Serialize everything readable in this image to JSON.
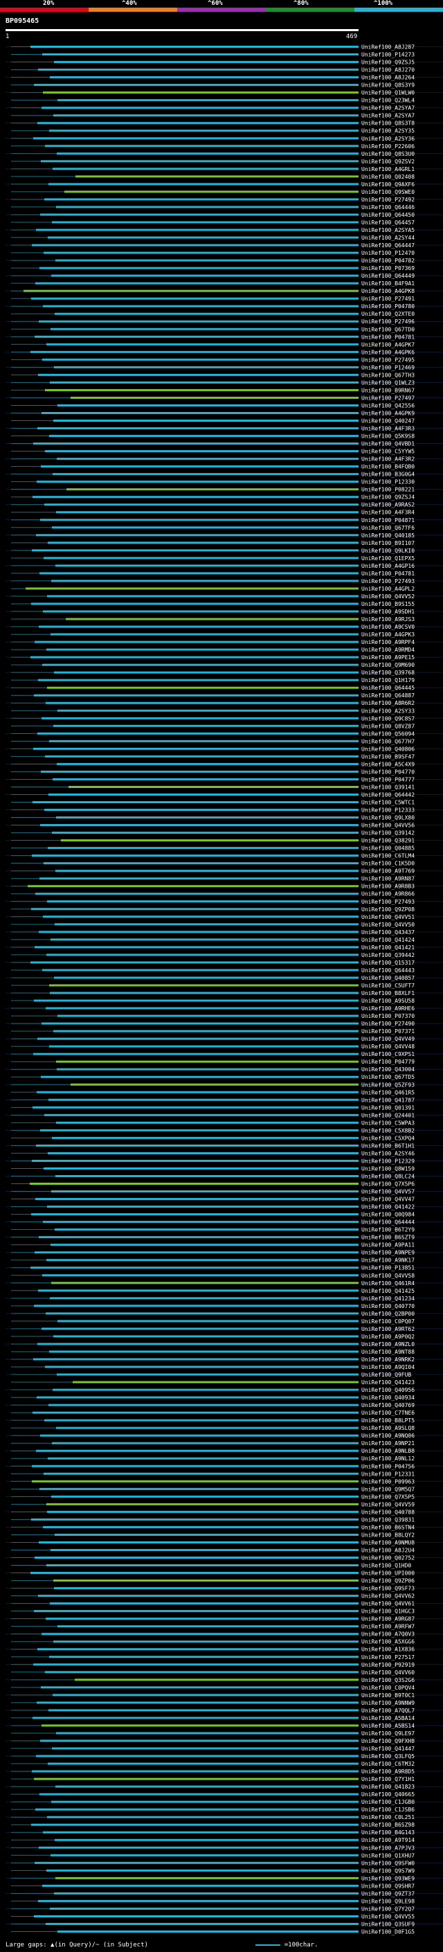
{
  "title": "BP095465",
  "scale": {
    "ticks": [
      "20%",
      "^40%",
      "^60%",
      "^80%",
      "^100%"
    ],
    "colors": [
      "#e8001c",
      "#ef7f18",
      "#9b2fb0",
      "#1b8f2a",
      "#1fb6d8"
    ]
  },
  "axis": {
    "start": "1",
    "end": "469"
  },
  "footer": {
    "gaps_text": "Large gaps: ▲(in Query)/~ (in Subject)",
    "scale_text": "=100char."
  },
  "chart_data": {
    "type": "alignment",
    "query_length": 469,
    "bar_color": "#1fb6d8",
    "partial_color": "#7bc62a",
    "hits": [
      "UniRef100_A8J287",
      "UniRef100_P14273",
      "UniRef100_Q9ZSJ5",
      "UniRef100_A8J270",
      "UniRef100_A8J264",
      "UniRef100_Q8S3Y9",
      "UniRef100_Q1WLW0",
      "UniRef100_Q23WL4",
      "UniRef100_A2SYA7",
      "UniRef100_A2SYA7",
      "UniRef100_Q8S3T8",
      "UniRef100_A2SY35",
      "UniRef100_A2SY36",
      "UniRef100_P22606",
      "UniRef100_Q8S3U0",
      "UniRef100_Q9ZSV2",
      "UniRef100_A4GRL1",
      "UniRef100_Q02408",
      "UniRef100_Q9AXF6",
      "UniRef100_Q9SWE0",
      "UniRef100_P27492",
      "UniRef100_Q64446",
      "UniRef100_Q64450",
      "UniRef100_Q64457",
      "UniRef100_A2SYA5",
      "UniRef100_A2SY44",
      "UniRef100_Q64447",
      "UniRef100_P12470",
      "UniRef100_P04782",
      "UniRef100_P07369",
      "UniRef100_Q64449",
      "UniRef100_B4F9A1",
      "UniRef100_A4GPK8",
      "UniRef100_P27491",
      "UniRef100_P04780",
      "UniRef100_Q2XTE0",
      "UniRef100_P27496",
      "UniRef100_Q67TD0",
      "UniRef100_P04781",
      "UniRef100_A4GPK7",
      "UniRef100_A4GPK6",
      "UniRef100_P27495",
      "UniRef100_P12469",
      "UniRef100_Q67TH3",
      "UniRef100_Q1WLZ3",
      "UniRef100_B9RN67",
      "UniRef100_P27497",
      "UniRef100_Q42556",
      "UniRef100_A4GPK9",
      "UniRef100_Q40247",
      "UniRef100_A4F3R3",
      "UniRef100_Q5K9S8",
      "UniRef100_Q4VBD1",
      "UniRef100_C5YYW5",
      "UniRef100_A4F3R2",
      "UniRef100_B4FQB0",
      "UniRef100_B3G0G4",
      "UniRef100_P12330",
      "UniRef100_P08221",
      "UniRef100_Q9ZSJ4",
      "UniRef100_A9RAS2",
      "UniRef100_A4F3R4",
      "UniRef100_P04871",
      "UniRef100_Q67TF6",
      "UniRef100_Q40185",
      "UniRef100_B9I107",
      "UniRef100_Q9LKI0",
      "UniRef100_Q1EPX5",
      "UniRef100_A4GP16",
      "UniRef100_P04781",
      "UniRef100_P27493",
      "UniRef100_A4GPL2",
      "UniRef100_Q4VV52",
      "UniRef100_B9S155",
      "UniRef100_A9SDH1",
      "UniRef100_A9RJS3",
      "UniRef100_A9CSV0",
      "UniRef100_A4GPK3",
      "UniRef100_A9RPF4",
      "UniRef100_A9RMD4",
      "UniRef100_A9PE15",
      "UniRef100_Q9M690",
      "UniRef100_Q39768",
      "UniRef100_Q1H179",
      "UniRef100_Q64445",
      "UniRef100_Q64887",
      "UniRef100_A8R6R2",
      "UniRef100_A2SY33",
      "UniRef100_Q9C8S7",
      "UniRef100_Q8VZ87",
      "UniRef100_Q56094",
      "UniRef100_Q677H7",
      "UniRef100_Q40806",
      "UniRef100_B9SF47",
      "UniRef100_A5C4X9",
      "UniRef100_P04770",
      "UniRef100_P04777",
      "UniRef100_Q39141",
      "UniRef100_Q64442",
      "UniRef100_C5WTC1",
      "UniRef100_P12333",
      "UniRef100_Q9LX80",
      "UniRef100_Q4VV56",
      "UniRef100_Q39142",
      "UniRef100_Q38291",
      "UniRef100_Q04885",
      "UniRef100_C6TLM4",
      "UniRef100_C1K5D0",
      "UniRef100_A9T769",
      "UniRef100_A9RN87",
      "UniRef100_A9R8B3",
      "UniRef100_A9R866",
      "UniRef100_P27493",
      "UniRef100_Q9ZP08",
      "UniRef100_Q4VV51",
      "UniRef100_Q4VV50",
      "UniRef100_Q43437",
      "UniRef100_Q41424",
      "UniRef100_Q41421",
      "UniRef100_Q39442",
      "UniRef100_Q15317",
      "UniRef100_Q64443",
      "UniRef100_Q40857",
      "UniRef100_C5UFT7",
      "UniRef100_B8XLF1",
      "UniRef100_A9SU58",
      "UniRef100_A9RHE6",
      "UniRef100_P07370",
      "UniRef100_P27490",
      "UniRef100_P07371",
      "UniRef100_Q4VV49",
      "UniRef100_Q4VV48",
      "UniRef100_C9XPS1",
      "UniRef100_P04779",
      "UniRef100_Q43004",
      "UniRef100_Q67TD5",
      "UniRef100_Q5ZF93",
      "UniRef100_Q461R5",
      "UniRef100_Q41787",
      "UniRef100_Q01391",
      "UniRef100_Q24401",
      "UniRef100_C5WPA3",
      "UniRef100_C5X8B2",
      "UniRef100_C5XPQ4",
      "UniRef100_B6T1H1",
      "UniRef100_A2SY46",
      "UniRef100_P12329",
      "UniRef100_Q8W159",
      "UniRef100_Q8LC24",
      "UniRef100_Q7X5P6",
      "UniRef100_Q4VV57",
      "UniRef100_Q4VV47",
      "UniRef100_Q41422",
      "UniRef100_Q0Q984",
      "UniRef100_Q64444",
      "UniRef100_B6T2Y9",
      "UniRef100_B6SZT9",
      "UniRef100_A9PA11",
      "UniRef100_A9NPE9",
      "UniRef100_A9NK17",
      "UniRef100_P13851",
      "UniRef100_Q4VV58",
      "UniRef100_Q461R4",
      "UniRef100_Q41425",
      "UniRef100_Q41234",
      "UniRef100_Q40770",
      "UniRef100_Q2BP00",
      "UniRef100_C0PQ07",
      "UniRef100_A9RT62",
      "UniRef100_A9P0Q2",
      "UniRef100_A9NZL0",
      "UniRef100_A9NT88",
      "UniRef100_A9NRK2",
      "UniRef100_A9QI04",
      "UniRef100_Q9FUB",
      "UniRef100_Q41423",
      "UniRef100_Q40956",
      "UniRef100_Q40934",
      "UniRef100_Q40769",
      "UniRef100_C7TNE6",
      "UniRef100_B8LPT5",
      "UniRef100_A9SLQ8",
      "UniRef100_A9NQ06",
      "UniRef100_A9NP21",
      "UniRef100_A9NLB8",
      "UniRef100_A9NL12",
      "UniRef100_P04756",
      "UniRef100_P12331",
      "UniRef100_P09963",
      "UniRef100_Q9M5Q7",
      "UniRef100_Q7X5P5",
      "UniRef100_Q4VV59",
      "UniRef100_Q40788",
      "UniRef100_Q39831",
      "UniRef100_B6STN4",
      "UniRef100_B8LQY2",
      "UniRef100_A9NMU8",
      "UniRef100_A8J2U4",
      "UniRef100_Q02752",
      "UniRef100_Q1HD0",
      "UniRef100_UPI000",
      "UniRef100_Q9ZP06",
      "UniRef100_Q9SF73",
      "UniRef100_Q4VV62",
      "UniRef100_Q4VV61",
      "UniRef100_Q1HGC3",
      "UniRef100_A9RG87",
      "UniRef100_A9RFW7",
      "UniRef100_A7Q0V3",
      "UniRef100_A5XGG6",
      "UniRef100_A1X836",
      "UniRef100_P27517",
      "UniRef100_P92919",
      "UniRef100_Q4VV60",
      "UniRef100_Q3S2G6",
      "UniRef100_C0PQV4",
      "UniRef100_B9T0C1",
      "UniRef100_A9NNW9",
      "UniRef100_A7QQL7",
      "UniRef100_A5BA14",
      "UniRef100_A5BS14",
      "UniRef100_Q9LE97",
      "UniRef100_Q9FXH8",
      "UniRef100_Q41447",
      "UniRef100_Q3LFQ5",
      "UniRef100_C6TM32",
      "UniRef100_A9R8D5",
      "UniRef100_Q7Y1H1",
      "UniRef100_Q41823",
      "UniRef100_Q40665",
      "UniRef100_C1JGB0",
      "UniRef100_C1JSB6",
      "UniRef100_C0L251",
      "UniRef100_B6SZ98",
      "UniRef100_B4G143",
      "UniRef100_A9T914",
      "UniRef100_A7PJV3",
      "UniRef100_Q1XHU7",
      "UniRef100_Q9SFW0",
      "UniRef100_Q9S7W9",
      "UniRef100_Q93WE9",
      "UniRef100_Q9SHR7",
      "UniRef100_Q9ZT37",
      "UniRef100_Q9LE98",
      "UniRef100_Q7Y2Q7",
      "UniRef100_Q4VV55",
      "UniRef100_Q3SUF9",
      "UniRef100_D0F1G5"
    ]
  }
}
